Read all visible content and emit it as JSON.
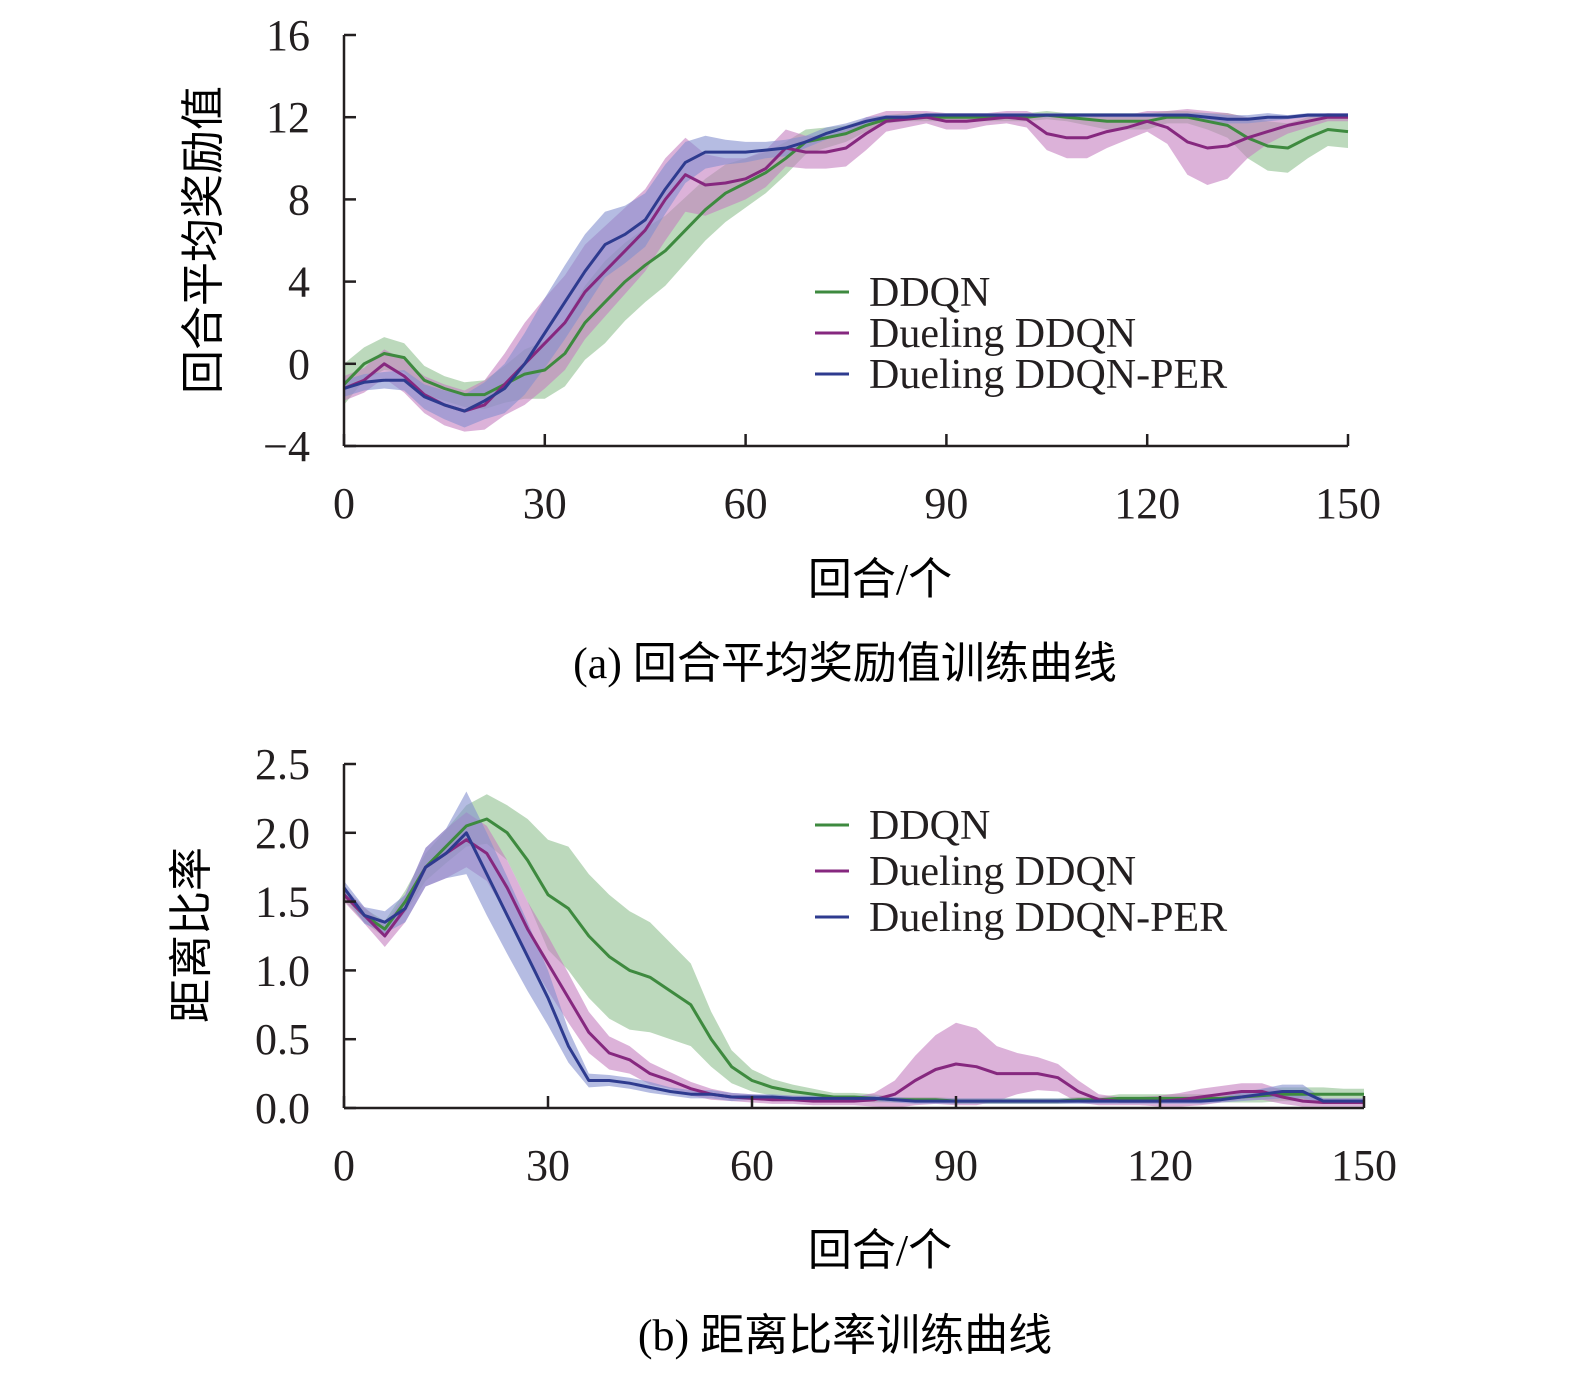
{
  "colors": {
    "ddqn": "#3e8a3f",
    "ddqn_fill": "#8fc08f",
    "dueling": "#86287f",
    "dueling_fill": "#c47fc0",
    "per": "#2e3b8f",
    "per_fill": "#8490cf",
    "axis": "#231f20"
  },
  "chart_data": [
    {
      "id": "a",
      "type": "line",
      "caption": "(a) 回合平均奖励值训练曲线",
      "xlabel": "回合/个",
      "ylabel": "回合平均奖励值",
      "xlim": [
        0,
        150
      ],
      "ylim": [
        -4,
        16
      ],
      "xticks": [
        0,
        30,
        60,
        90,
        120,
        150
      ],
      "xtick_labels": [
        "0",
        "30",
        "60",
        "90",
        "120",
        "150"
      ],
      "yticks": [
        -4,
        0,
        4,
        8,
        12,
        16
      ],
      "ytick_labels": [
        "−4",
        "0",
        "4",
        "8",
        "12",
        "16"
      ],
      "legend": [
        "DDQN",
        "Dueling DDQN",
        "Dueling DDQN-PER"
      ],
      "x": [
        0,
        3,
        6,
        9,
        12,
        15,
        18,
        21,
        24,
        27,
        30,
        33,
        36,
        39,
        42,
        45,
        48,
        51,
        54,
        57,
        60,
        63,
        66,
        69,
        72,
        75,
        78,
        81,
        84,
        87,
        90,
        93,
        96,
        99,
        102,
        105,
        108,
        111,
        114,
        117,
        120,
        123,
        126,
        129,
        132,
        135,
        138,
        141,
        144,
        147,
        150
      ],
      "series": [
        {
          "name": "DDQN",
          "values": [
            -1.0,
            0.0,
            0.5,
            0.3,
            -0.8,
            -1.2,
            -1.5,
            -1.5,
            -1.0,
            -0.5,
            -0.3,
            0.5,
            2.0,
            3.0,
            4.0,
            4.8,
            5.5,
            6.5,
            7.5,
            8.3,
            8.8,
            9.3,
            10.0,
            10.8,
            11.0,
            11.2,
            11.6,
            11.9,
            12.0,
            12.0,
            12.0,
            12.0,
            12.0,
            12.0,
            12.0,
            12.1,
            12.0,
            11.9,
            11.8,
            11.8,
            11.8,
            12.0,
            12.0,
            11.8,
            11.6,
            11.0,
            10.6,
            10.5,
            11.0,
            11.4,
            11.3
          ],
          "band": [
            1.0,
            0.8,
            0.8,
            0.7,
            0.7,
            0.6,
            0.6,
            0.7,
            0.9,
            1.2,
            1.4,
            1.6,
            1.8,
            2.0,
            1.9,
            1.8,
            1.7,
            1.6,
            1.5,
            1.4,
            1.2,
            1.0,
            0.8,
            0.6,
            0.5,
            0.4,
            0.3,
            0.2,
            0.2,
            0.2,
            0.2,
            0.2,
            0.2,
            0.2,
            0.2,
            0.2,
            0.2,
            0.3,
            0.4,
            0.4,
            0.4,
            0.3,
            0.3,
            0.4,
            0.6,
            1.0,
            1.2,
            1.2,
            1.0,
            0.8,
            0.8
          ]
        },
        {
          "name": "Dueling DDQN",
          "values": [
            -1.2,
            -0.8,
            0.0,
            -0.6,
            -1.5,
            -2.0,
            -2.3,
            -2.0,
            -1.0,
            0.0,
            1.0,
            2.0,
            3.5,
            4.5,
            5.5,
            6.5,
            8.0,
            9.2,
            8.7,
            8.8,
            9.0,
            9.5,
            10.5,
            10.3,
            10.3,
            10.5,
            11.2,
            11.8,
            11.9,
            12.0,
            11.8,
            11.8,
            11.9,
            12.0,
            11.9,
            11.2,
            11.0,
            11.0,
            11.3,
            11.5,
            11.8,
            11.5,
            10.8,
            10.5,
            10.6,
            11.0,
            11.3,
            11.6,
            11.8,
            12.0,
            12.0
          ],
          "band": [
            0.6,
            0.6,
            0.7,
            0.8,
            0.9,
            1.0,
            1.0,
            1.2,
            1.5,
            2.0,
            2.2,
            2.3,
            2.3,
            2.2,
            2.1,
            2.0,
            2.0,
            1.8,
            1.5,
            1.2,
            1.0,
            0.9,
            0.9,
            0.8,
            0.8,
            0.9,
            0.8,
            0.5,
            0.4,
            0.3,
            0.4,
            0.4,
            0.3,
            0.3,
            0.4,
            0.8,
            1.0,
            1.0,
            0.8,
            0.6,
            0.5,
            0.8,
            1.6,
            1.8,
            1.6,
            1.0,
            0.6,
            0.4,
            0.3,
            0.2,
            0.2
          ]
        },
        {
          "name": "Dueling DDQN-PER",
          "values": [
            -1.2,
            -0.9,
            -0.8,
            -0.8,
            -1.6,
            -2.0,
            -2.3,
            -1.8,
            -1.2,
            0.0,
            1.5,
            3.0,
            4.5,
            5.8,
            6.3,
            7.0,
            8.5,
            9.8,
            10.3,
            10.3,
            10.3,
            10.4,
            10.5,
            10.8,
            11.2,
            11.5,
            11.8,
            12.0,
            12.0,
            12.1,
            12.1,
            12.1,
            12.1,
            12.1,
            12.1,
            12.1,
            12.1,
            12.1,
            12.1,
            12.1,
            12.1,
            12.1,
            12.1,
            12.0,
            11.9,
            11.9,
            12.0,
            12.0,
            12.1,
            12.1,
            12.1
          ],
          "band": [
            0.4,
            0.4,
            0.4,
            0.5,
            0.6,
            0.7,
            0.8,
            0.9,
            1.2,
            1.5,
            1.7,
            1.8,
            1.8,
            1.6,
            1.4,
            1.3,
            1.2,
            1.0,
            0.8,
            0.6,
            0.5,
            0.4,
            0.4,
            0.3,
            0.3,
            0.2,
            0.2,
            0.1,
            0.1,
            0.1,
            0.1,
            0.1,
            0.1,
            0.1,
            0.1,
            0.1,
            0.1,
            0.1,
            0.1,
            0.1,
            0.1,
            0.1,
            0.1,
            0.2,
            0.2,
            0.2,
            0.2,
            0.1,
            0.1,
            0.1,
            0.1
          ]
        }
      ]
    },
    {
      "id": "b",
      "type": "line",
      "caption": "(b) 距离比率训练曲线",
      "xlabel": "回合/个",
      "ylabel": "距离比率",
      "xlim": [
        0,
        150
      ],
      "ylim": [
        0,
        2.5
      ],
      "xticks": [
        0,
        30,
        60,
        90,
        120,
        150
      ],
      "xtick_labels": [
        "0",
        "30",
        "60",
        "90",
        "120",
        "150"
      ],
      "yticks": [
        0,
        0.5,
        1.0,
        1.5,
        2.0,
        2.5
      ],
      "ytick_labels": [
        "0.0",
        "0.5",
        "1.0",
        "1.5",
        "2.0",
        "2.5"
      ],
      "legend": [
        "DDQN",
        "Dueling DDQN",
        "Dueling DDQN-PER"
      ],
      "x": [
        0,
        3,
        6,
        9,
        12,
        15,
        18,
        21,
        24,
        27,
        30,
        33,
        36,
        39,
        42,
        45,
        48,
        51,
        54,
        57,
        60,
        63,
        66,
        69,
        72,
        75,
        78,
        81,
        84,
        87,
        90,
        93,
        96,
        99,
        102,
        105,
        108,
        111,
        114,
        117,
        120,
        123,
        126,
        129,
        132,
        135,
        138,
        141,
        144,
        147,
        150
      ],
      "series": [
        {
          "name": "DDQN",
          "values": [
            1.55,
            1.4,
            1.3,
            1.5,
            1.75,
            1.9,
            2.05,
            2.1,
            2.0,
            1.8,
            1.55,
            1.45,
            1.25,
            1.1,
            1.0,
            0.95,
            0.85,
            0.75,
            0.5,
            0.3,
            0.2,
            0.15,
            0.12,
            0.1,
            0.08,
            0.08,
            0.07,
            0.06,
            0.06,
            0.06,
            0.05,
            0.05,
            0.05,
            0.05,
            0.05,
            0.05,
            0.06,
            0.06,
            0.07,
            0.07,
            0.07,
            0.07,
            0.07,
            0.07,
            0.08,
            0.09,
            0.1,
            0.1,
            0.1,
            0.1,
            0.1
          ],
          "band": [
            0.04,
            0.05,
            0.06,
            0.08,
            0.1,
            0.12,
            0.15,
            0.18,
            0.2,
            0.3,
            0.4,
            0.45,
            0.45,
            0.45,
            0.43,
            0.4,
            0.35,
            0.3,
            0.2,
            0.12,
            0.08,
            0.06,
            0.05,
            0.04,
            0.03,
            0.03,
            0.03,
            0.02,
            0.02,
            0.02,
            0.02,
            0.02,
            0.02,
            0.02,
            0.02,
            0.02,
            0.02,
            0.02,
            0.03,
            0.03,
            0.03,
            0.03,
            0.03,
            0.03,
            0.04,
            0.05,
            0.05,
            0.05,
            0.05,
            0.04,
            0.04
          ]
        },
        {
          "name": "Dueling DDQN",
          "values": [
            1.55,
            1.4,
            1.25,
            1.45,
            1.75,
            1.85,
            1.95,
            1.85,
            1.6,
            1.3,
            1.05,
            0.8,
            0.55,
            0.4,
            0.35,
            0.25,
            0.2,
            0.14,
            0.1,
            0.08,
            0.07,
            0.06,
            0.06,
            0.05,
            0.05,
            0.05,
            0.06,
            0.1,
            0.2,
            0.28,
            0.32,
            0.3,
            0.25,
            0.25,
            0.25,
            0.22,
            0.12,
            0.06,
            0.05,
            0.05,
            0.05,
            0.06,
            0.08,
            0.1,
            0.12,
            0.12,
            0.08,
            0.05,
            0.04,
            0.04,
            0.04
          ],
          "band": [
            0.05,
            0.06,
            0.08,
            0.1,
            0.14,
            0.18,
            0.2,
            0.2,
            0.2,
            0.2,
            0.2,
            0.18,
            0.15,
            0.12,
            0.1,
            0.08,
            0.06,
            0.05,
            0.04,
            0.03,
            0.03,
            0.03,
            0.03,
            0.03,
            0.03,
            0.03,
            0.05,
            0.1,
            0.18,
            0.25,
            0.3,
            0.28,
            0.2,
            0.15,
            0.12,
            0.1,
            0.08,
            0.04,
            0.03,
            0.03,
            0.04,
            0.05,
            0.06,
            0.06,
            0.06,
            0.06,
            0.05,
            0.04,
            0.03,
            0.03,
            0.03
          ]
        },
        {
          "name": "Dueling DDQN-PER",
          "values": [
            1.6,
            1.4,
            1.35,
            1.45,
            1.75,
            1.85,
            2.0,
            1.7,
            1.4,
            1.1,
            0.8,
            0.45,
            0.2,
            0.2,
            0.18,
            0.15,
            0.12,
            0.1,
            0.1,
            0.08,
            0.08,
            0.08,
            0.07,
            0.07,
            0.07,
            0.07,
            0.07,
            0.06,
            0.05,
            0.05,
            0.05,
            0.05,
            0.05,
            0.05,
            0.05,
            0.05,
            0.05,
            0.05,
            0.05,
            0.05,
            0.05,
            0.05,
            0.05,
            0.06,
            0.08,
            0.1,
            0.12,
            0.12,
            0.05,
            0.05,
            0.05
          ],
          "band": [
            0.05,
            0.06,
            0.08,
            0.1,
            0.14,
            0.18,
            0.3,
            0.3,
            0.28,
            0.25,
            0.2,
            0.12,
            0.05,
            0.04,
            0.04,
            0.04,
            0.03,
            0.03,
            0.03,
            0.03,
            0.02,
            0.02,
            0.02,
            0.02,
            0.02,
            0.02,
            0.02,
            0.02,
            0.02,
            0.02,
            0.02,
            0.02,
            0.02,
            0.02,
            0.02,
            0.02,
            0.02,
            0.02,
            0.02,
            0.02,
            0.02,
            0.02,
            0.02,
            0.02,
            0.03,
            0.04,
            0.05,
            0.05,
            0.02,
            0.02,
            0.02
          ]
        }
      ]
    }
  ]
}
